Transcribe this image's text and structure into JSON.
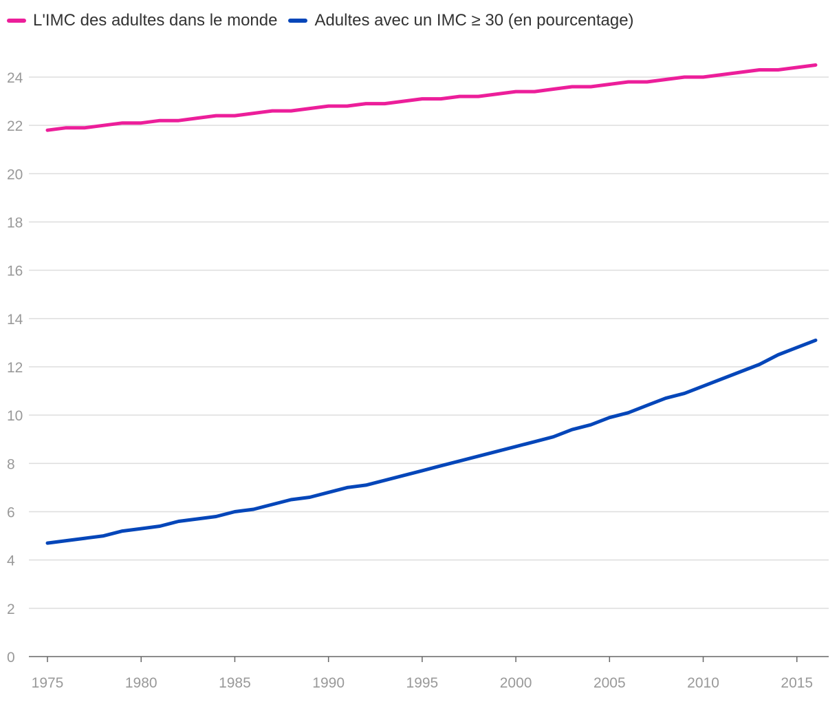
{
  "chart_data": {
    "type": "line",
    "title": "",
    "xlabel": "",
    "ylabel": "",
    "x": [
      1975,
      1976,
      1977,
      1978,
      1979,
      1980,
      1981,
      1982,
      1983,
      1984,
      1985,
      1986,
      1987,
      1988,
      1989,
      1990,
      1991,
      1992,
      1993,
      1994,
      1995,
      1996,
      1997,
      1998,
      1999,
      2000,
      2001,
      2002,
      2003,
      2004,
      2005,
      2006,
      2007,
      2008,
      2009,
      2010,
      2011,
      2012,
      2013,
      2014,
      2015,
      2016
    ],
    "xlim": [
      1975,
      2016
    ],
    "ylim": [
      0,
      24
    ],
    "x_ticks": [
      "1975",
      "1980",
      "1985",
      "1990",
      "1995",
      "2000",
      "2005",
      "2010",
      "2015"
    ],
    "y_ticks": [
      "0",
      "2",
      "4",
      "6",
      "8",
      "10",
      "12",
      "14",
      "16",
      "18",
      "20",
      "22",
      "24"
    ],
    "grid": true,
    "legend_position": "top-left",
    "series": [
      {
        "name": "L'IMC des adultes dans le monde",
        "color": "#ec1e9a",
        "values": [
          21.8,
          21.9,
          21.9,
          22.0,
          22.1,
          22.1,
          22.2,
          22.2,
          22.3,
          22.4,
          22.4,
          22.5,
          22.6,
          22.6,
          22.7,
          22.8,
          22.8,
          22.9,
          22.9,
          23.0,
          23.1,
          23.1,
          23.2,
          23.2,
          23.3,
          23.4,
          23.4,
          23.5,
          23.6,
          23.6,
          23.7,
          23.8,
          23.8,
          23.9,
          24.0,
          24.0,
          24.1,
          24.2,
          24.3,
          24.3,
          24.4,
          24.5
        ]
      },
      {
        "name": "Adultes avec un IMC ≥ 30 (en pourcentage)",
        "color": "#0546b9",
        "values": [
          4.7,
          4.8,
          4.9,
          5.0,
          5.2,
          5.3,
          5.4,
          5.6,
          5.7,
          5.8,
          6.0,
          6.1,
          6.3,
          6.5,
          6.6,
          6.8,
          7.0,
          7.1,
          7.3,
          7.5,
          7.7,
          7.9,
          8.1,
          8.3,
          8.5,
          8.7,
          8.9,
          9.1,
          9.4,
          9.6,
          9.9,
          10.1,
          10.4,
          10.7,
          10.9,
          11.2,
          11.5,
          11.8,
          12.1,
          12.5,
          12.8,
          13.1
        ]
      }
    ]
  }
}
